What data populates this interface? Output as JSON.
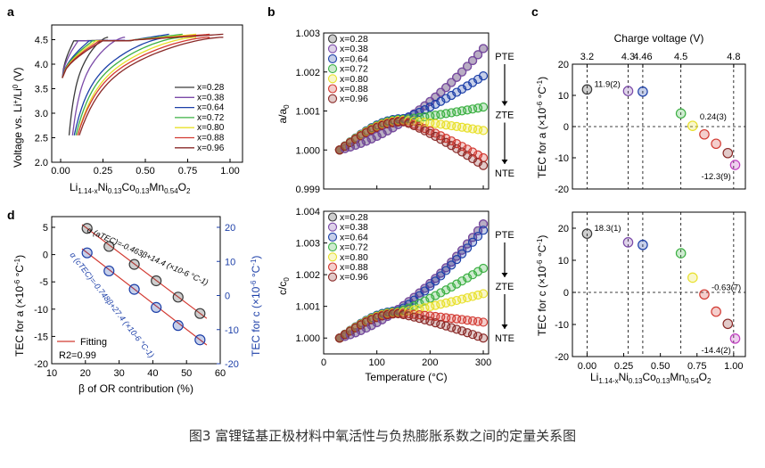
{
  "caption": "图3 富锂锰基正极材料中氧活性与负热膨胀系数之间的定量关系图",
  "legend_x": [
    "x=0.28",
    "x=0.38",
    "x=0.64",
    "x=0.72",
    "x=0.80",
    "x=0.88",
    "x=0.96"
  ],
  "colors": [
    "#3a3a3a",
    "#7b4aa8",
    "#1c3fa8",
    "#3cb043",
    "#e8e02a",
    "#d23a32",
    "#8a2a28"
  ],
  "chart_data": [
    {
      "id": "a",
      "type": "line",
      "panel_label": "a",
      "xlabel": "Li1.14-xNi0.13Co0.13Mn0.54O2",
      "ylabel": "Voltage vs. Li+/Li0 (V)",
      "xlim": [
        0,
        1.0
      ],
      "ylim": [
        2.0,
        4.8
      ],
      "xticks": [
        "0.00",
        "0.25",
        "0.50",
        "0.75",
        "1.00"
      ],
      "yticks": [
        "2.0",
        "2.5",
        "3.0",
        "3.5",
        "4.0",
        "4.5"
      ],
      "legend": [
        "x=0.28",
        "x=0.38",
        "x=0.64",
        "x=0.72",
        "x=0.80",
        "x=0.88",
        "x=0.96"
      ],
      "series": [
        {
          "name": "x=0.28",
          "charge_end": 0.28,
          "discharge_end": 0.05
        },
        {
          "name": "x=0.38",
          "charge_end": 0.38,
          "discharge_end": 0.07
        },
        {
          "name": "x=0.64",
          "charge_end": 0.64,
          "discharge_end": 0.08
        },
        {
          "name": "x=0.72",
          "charge_end": 0.72,
          "discharge_end": 0.09
        },
        {
          "name": "x=0.80",
          "charge_end": 0.8,
          "discharge_end": 0.1
        },
        {
          "name": "x=0.88",
          "charge_end": 0.88,
          "discharge_end": 0.1
        },
        {
          "name": "x=0.96",
          "charge_end": 0.96,
          "discharge_end": 0.11
        }
      ]
    },
    {
      "id": "b_top",
      "type": "scatter",
      "panel_label": "b",
      "ylabel": "a/a0",
      "xlim": [
        0,
        310
      ],
      "ylim": [
        0.999,
        1.003
      ],
      "yticks": [
        "0.999",
        "1.000",
        "1.001",
        "1.002",
        "1.003"
      ],
      "legend": [
        "x=0.28",
        "x=0.38",
        "x=0.64",
        "x=0.72",
        "x=0.80",
        "x=0.88",
        "x=0.96"
      ],
      "annotations": [
        "PTE",
        "ZTE",
        "NTE"
      ],
      "x": [
        30,
        40,
        50,
        60,
        70,
        80,
        90,
        100,
        110,
        120,
        130,
        140,
        150,
        160,
        170,
        180,
        190,
        200,
        210,
        220,
        230,
        240,
        250,
        260,
        270,
        280,
        290,
        300
      ],
      "curve_model": {
        "start": 1.0,
        "peak_T": 150,
        "peak_value": 1.00085,
        "end_values_at_300": [
          1.0026,
          1.0026,
          1.0019,
          1.0011,
          1.0005,
          0.9998,
          0.9996
        ]
      }
    },
    {
      "id": "b_bottom",
      "type": "scatter",
      "xlabel": "Temperature (°C)",
      "ylabel": "c/c0",
      "xlim": [
        0,
        310
      ],
      "ylim": [
        0.9995,
        1.004
      ],
      "xticks": [
        "0",
        "100",
        "200",
        "300"
      ],
      "yticks": [
        "1.000",
        "1.001",
        "1.002",
        "1.003",
        "1.004"
      ],
      "legend": [
        "x=0.28",
        "x=0.38",
        "x=0.64",
        "x=0.72",
        "x=0.80",
        "x=0.88",
        "x=0.96"
      ],
      "annotations": [
        "PTE",
        "ZTE",
        "NTE"
      ],
      "x": [
        30,
        40,
        50,
        60,
        70,
        80,
        90,
        100,
        110,
        120,
        130,
        140,
        150,
        160,
        170,
        180,
        190,
        200,
        210,
        220,
        230,
        240,
        250,
        260,
        270,
        280,
        290,
        300
      ],
      "curve_model": {
        "start": 1.0,
        "peak_T": 140,
        "peak_value": 1.0009,
        "end_values_at_300": [
          1.0036,
          1.0036,
          1.0034,
          1.0022,
          1.0014,
          1.0005,
          1.0
        ]
      }
    },
    {
      "id": "c_top",
      "type": "scatter",
      "panel_label": "c",
      "title": "Charge voltage (V)",
      "ylabel": "TEC for a (×10-6 °C-1)",
      "xlim": [
        -0.1,
        1.08
      ],
      "ylim": [
        -20,
        20
      ],
      "yticks": [
        "-20",
        "-10",
        "0",
        "10",
        "20"
      ],
      "top_ticks": [
        {
          "label": "3.2",
          "x": 0.0
        },
        {
          "label": "4.3",
          "x": 0.28
        },
        {
          "label": "4.46",
          "x": 0.38
        },
        {
          "label": "4.5",
          "x": 0.64
        },
        {
          "label": "4.8",
          "x": 1.0
        }
      ],
      "points": [
        {
          "x": 0.0,
          "y": 11.9,
          "label": "11.9(2)"
        },
        {
          "x": 0.28,
          "y": 11.4
        },
        {
          "x": 0.38,
          "y": 11.2
        },
        {
          "x": 0.64,
          "y": 4.2
        },
        {
          "x": 0.72,
          "y": 0.24,
          "label": "0.24(3)"
        },
        {
          "x": 0.8,
          "y": -2.5
        },
        {
          "x": 0.88,
          "y": -5.5
        },
        {
          "x": 0.96,
          "y": -8.5
        },
        {
          "x": 1.01,
          "y": -12.3,
          "label": "-12.3(9)"
        }
      ]
    },
    {
      "id": "c_bottom",
      "type": "scatter",
      "xlabel": "Li1.14-xNi0.13Co0.13Mn0.54O2",
      "ylabel": "TEC for c (×10-6 °C-1)",
      "xlim": [
        -0.1,
        1.08
      ],
      "ylim": [
        -20,
        25
      ],
      "xticks": [
        "0.00",
        "0.25",
        "0.50",
        "0.75",
        "1.00"
      ],
      "yticks": [
        "-20",
        "-10",
        "0",
        "10",
        "20"
      ],
      "points": [
        {
          "x": 0.0,
          "y": 18.3,
          "label": "18.3(1)"
        },
        {
          "x": 0.28,
          "y": 15.6
        },
        {
          "x": 0.38,
          "y": 14.8
        },
        {
          "x": 0.64,
          "y": 12.2
        },
        {
          "x": 0.72,
          "y": 4.6
        },
        {
          "x": 0.8,
          "y": -0.63,
          "label": "-0.63(7)"
        },
        {
          "x": 0.88,
          "y": -6.0
        },
        {
          "x": 0.96,
          "y": -9.8
        },
        {
          "x": 1.01,
          "y": -14.4,
          "label": "-14.4(2)"
        }
      ]
    },
    {
      "id": "d",
      "type": "scatter",
      "panel_label": "d",
      "xlabel": "β of OR contribution (%)",
      "ylabel_left": "TEC for a (×10-6 °C-1)",
      "ylabel_right": "TEC for c (×10-6 °C-1)",
      "xlim": [
        10,
        60
      ],
      "ylim_left": [
        -20,
        5
      ],
      "ylim_right": [
        -20,
        20
      ],
      "xticks": [
        "10",
        "20",
        "30",
        "40",
        "50",
        "60"
      ],
      "yticks_left": [
        "-20",
        "-15",
        "-10",
        "-5",
        "0",
        "5"
      ],
      "yticks_right": [
        "-20",
        "-10",
        "0",
        "10",
        "20"
      ],
      "equation_a": "α (aTEC)=-0.463β+14.4 (×10-6 °C-1)",
      "equation_c": "α (cTEC)=-0.748β+27.4 (×10-6 °C-1)",
      "legend": [
        "Fitting"
      ],
      "r2": "R2=0.99",
      "series": [
        {
          "name": "a",
          "x": [
            20.5,
            27.0,
            34.5,
            41.0,
            47.5,
            54.0
          ],
          "y": [
            4.8,
            1.5,
            -1.8,
            -4.8,
            -7.8,
            -10.8
          ]
        },
        {
          "name": "c",
          "x": [
            20.5,
            27.0,
            34.5,
            41.0,
            47.5,
            54.0
          ],
          "y": [
            12.5,
            7.2,
            1.8,
            -3.5,
            -8.8,
            -13.0
          ]
        }
      ]
    }
  ]
}
